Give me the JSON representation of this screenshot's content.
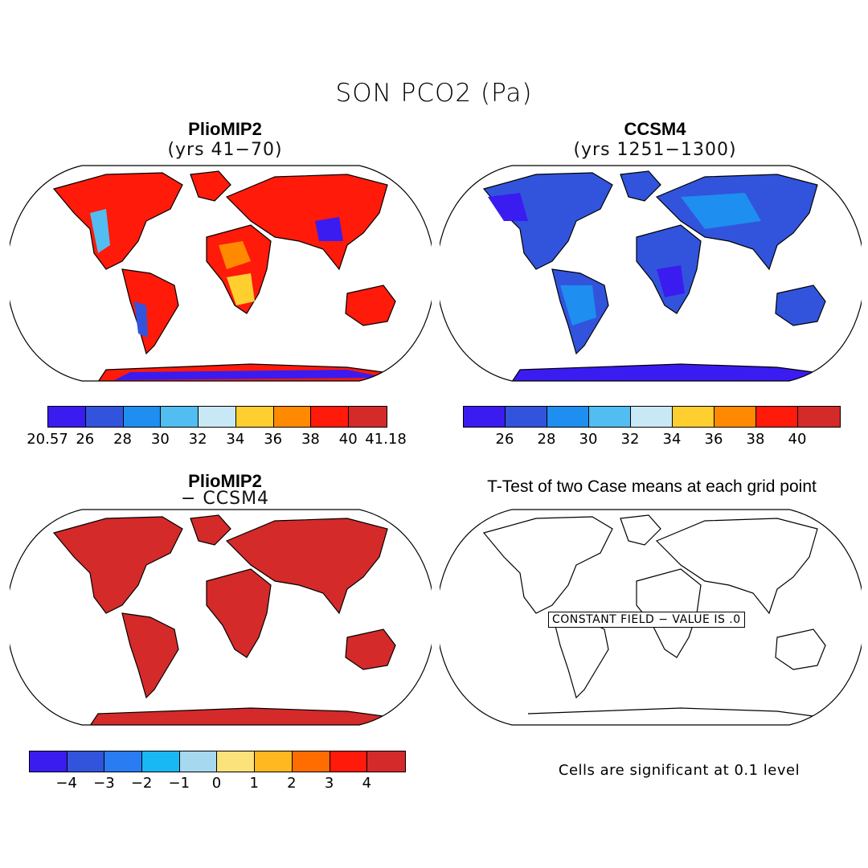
{
  "title": "SON PCO2 (Pa)",
  "colors": {
    "absolute_scale": [
      "#3a1cf0",
      "#3254dc",
      "#1e8ef0",
      "#52bdf0",
      "#c8e8f5",
      "#ffcf30",
      "#ff8a00",
      "#ff1a0a",
      "#d42a2a"
    ],
    "difference_scale": [
      "#3a1cf0",
      "#3254dc",
      "#2a7cf2",
      "#18b8f5",
      "#a6d8ef",
      "#fbe27a",
      "#ffb820",
      "#ff6c00",
      "#ff1a0a",
      "#d42a2a"
    ],
    "difference_fill": "#d42a2a",
    "ocean": "#ffffff",
    "outline": "#000000"
  },
  "panels": {
    "top_left": {
      "title": "PlioMIP2",
      "subtitle": "(yrs 41−70)",
      "ticks": [
        "20.57",
        "26",
        "28",
        "30",
        "32",
        "34",
        "36",
        "38",
        "40",
        "41.18"
      ]
    },
    "top_right": {
      "title": "CCSM4",
      "subtitle": "(yrs 1251−1300)",
      "ticks": [
        "26",
        "28",
        "30",
        "32",
        "34",
        "36",
        "38",
        "40"
      ]
    },
    "bottom_left": {
      "title": "PlioMIP2",
      "subtitle": "− CCSM4",
      "ticks": [
        "−4",
        "−3",
        "−2",
        "−1",
        "0",
        "1",
        "2",
        "3",
        "4"
      ]
    },
    "bottom_right": {
      "title": "T-Test of two Case means at each grid point",
      "field_label": "CONSTANT FIELD − VALUE IS .0",
      "note": "Cells are significant at 0.1 level"
    }
  }
}
